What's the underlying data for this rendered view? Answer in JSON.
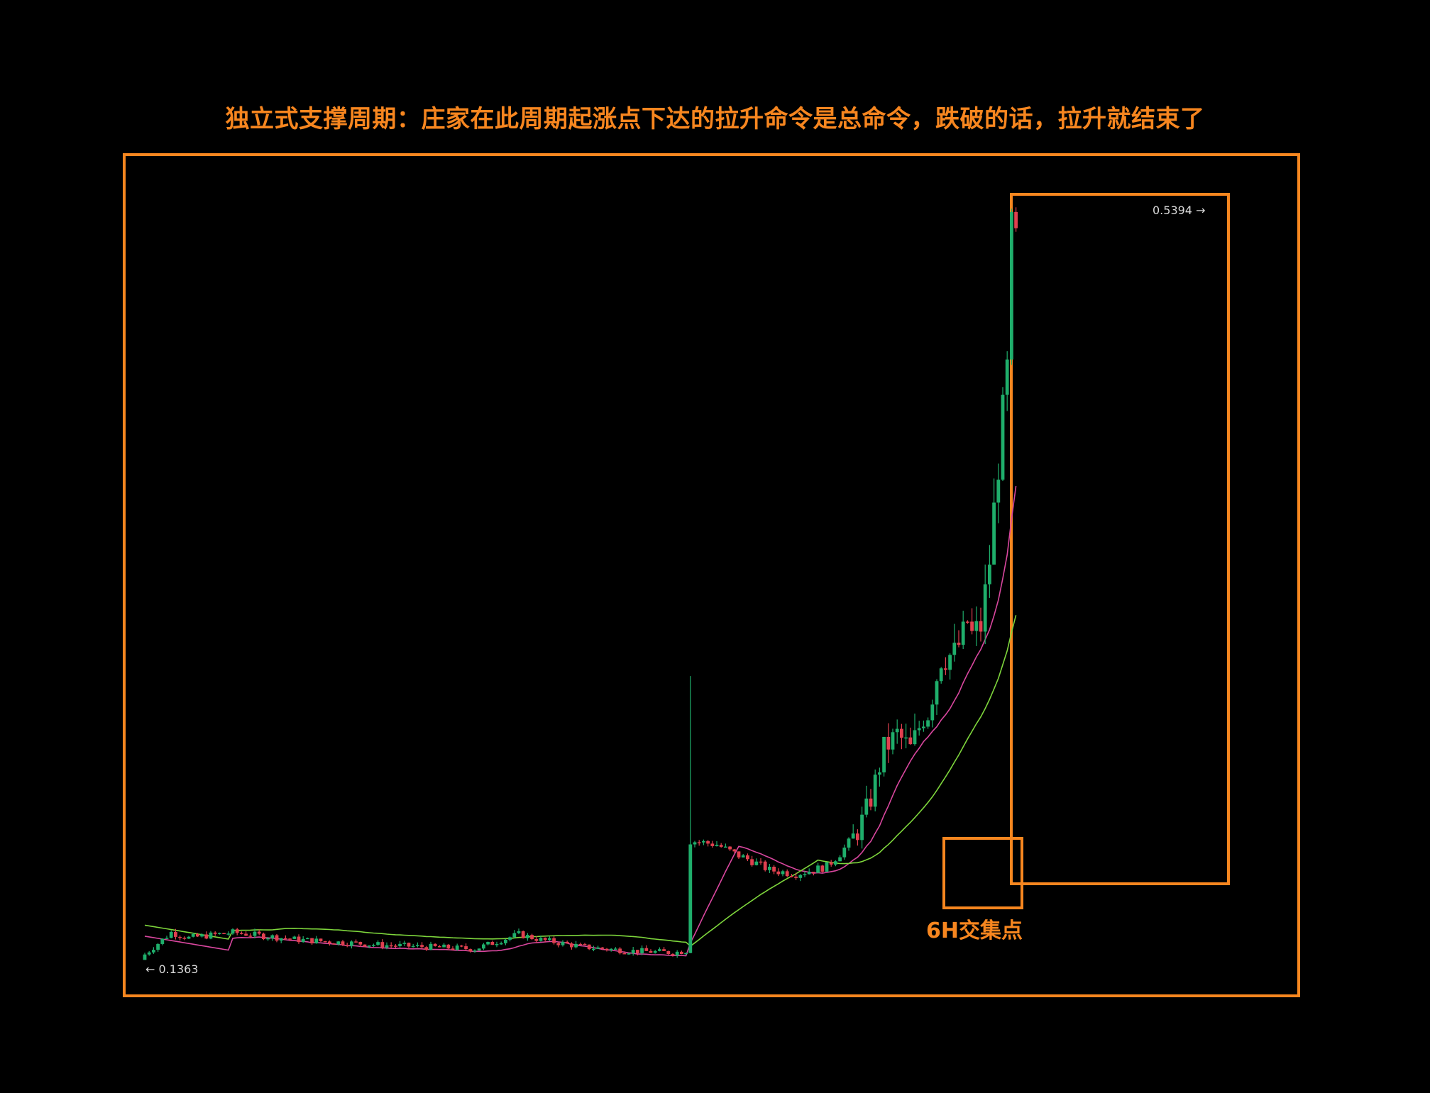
{
  "title": "独立式支撑周期：庄家在此周期起涨点下达的拉升命令是总命令，跌破的话，拉升就结束了",
  "annotation": "6H交集点",
  "colors": {
    "background": "#000000",
    "frame": "#f7861f",
    "candle_up": "#1fae6b",
    "candle_down": "#e0404f",
    "ma_fast": "#d9479f",
    "ma_slow": "#7ed63c",
    "price_label": "#d9d9d9"
  },
  "chart_data": {
    "type": "candlestick",
    "title": "",
    "xlabel": "",
    "ylabel": "",
    "ylim": [
      0.12,
      0.56
    ],
    "max_label": "0.5394 →",
    "min_label": "← 0.1363",
    "low_value": 0.1363,
    "high_value": 0.5394,
    "series": [
      {
        "kind": "ma",
        "color_key": "ma_fast"
      },
      {
        "kind": "ma",
        "color_key": "ma_slow"
      }
    ]
  }
}
